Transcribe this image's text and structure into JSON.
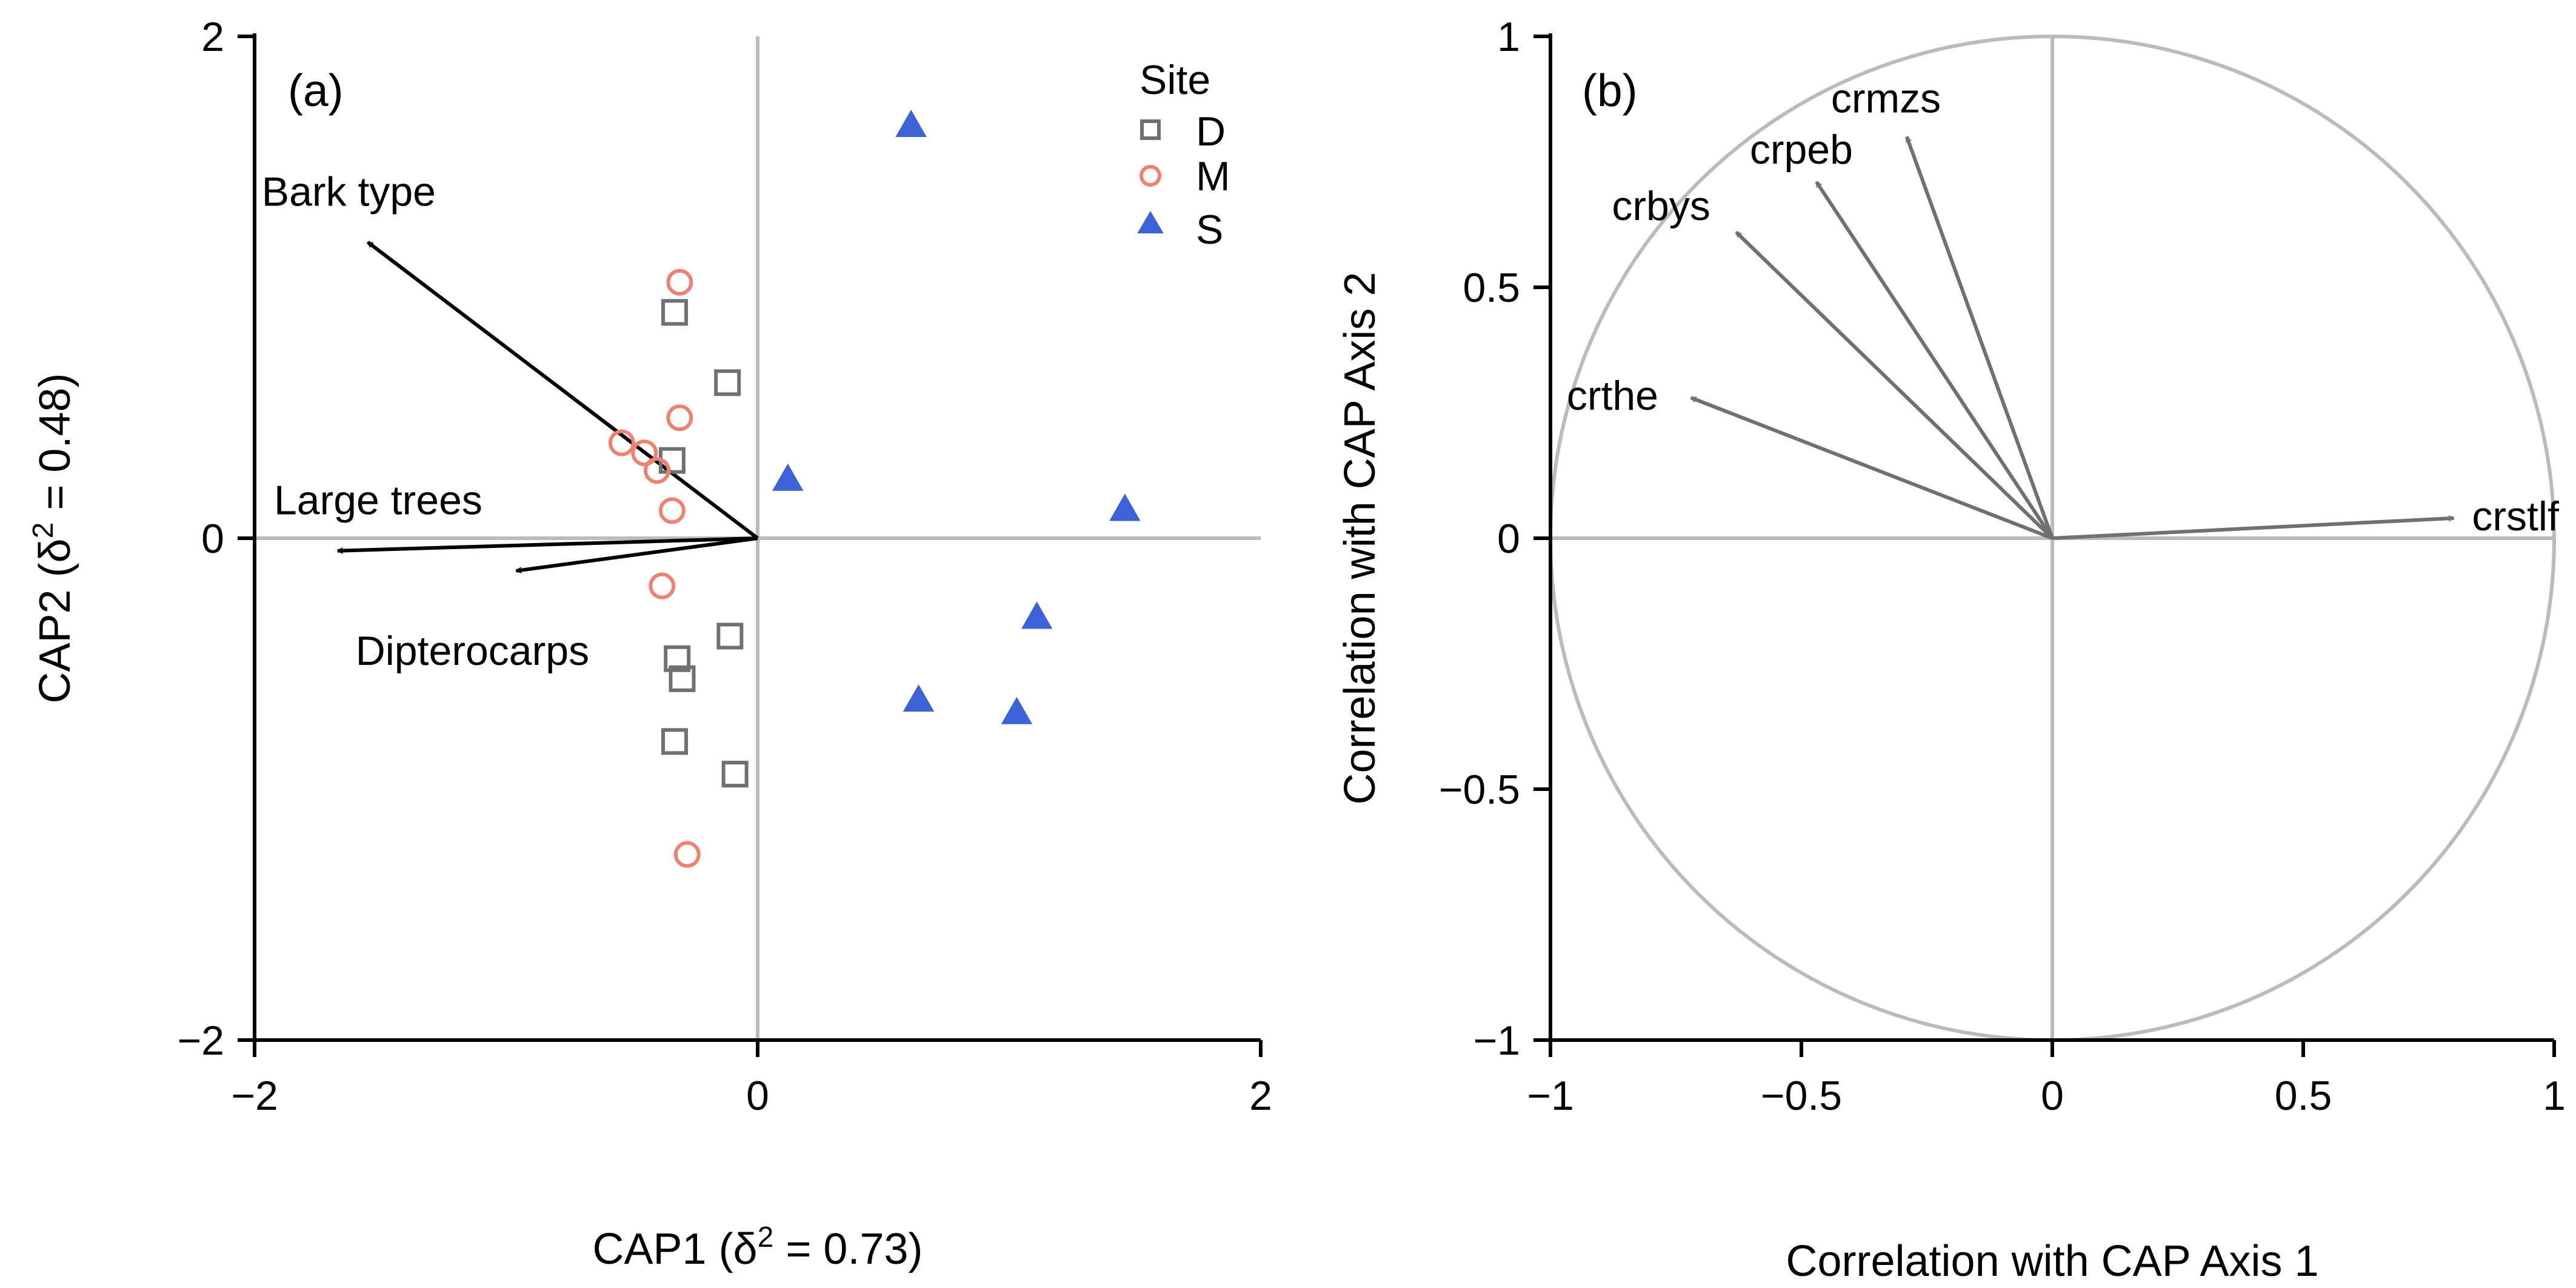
{
  "chart_data": [
    {
      "type": "scatter",
      "panel_label": "(a)",
      "xlabel": "CAP1 (δ² = 0.73)",
      "xlabel_parts": {
        "prefix": "CAP1 (δ",
        "sup": "2",
        "suffix": " = 0.73)"
      },
      "ylabel": "CAP2 (δ² = 0.48)",
      "ylabel_parts": {
        "prefix": "CAP2 (δ",
        "sup": "2",
        "suffix": " = 0.48)"
      },
      "xlim": [
        -2,
        2
      ],
      "ylim": [
        -2,
        2
      ],
      "xticks": [
        -2,
        0,
        2
      ],
      "xtick_labels": [
        "−2",
        "0",
        "2"
      ],
      "yticks": [
        -2,
        0,
        2
      ],
      "ytick_labels": [
        "−2",
        "0",
        "2"
      ],
      "legend": {
        "title": "Site",
        "position": "top-right",
        "entries": [
          {
            "label": "D",
            "marker": "square-open",
            "color": "#707070"
          },
          {
            "label": "M",
            "marker": "circle-open",
            "color": "#f08070"
          },
          {
            "label": "S",
            "marker": "triangle-filled",
            "color": "#3d62d8"
          }
        ]
      },
      "series": [
        {
          "name": "D",
          "marker": "square-open",
          "color": "#707070",
          "points": [
            [
              -0.33,
              0.9
            ],
            [
              -0.12,
              0.62
            ],
            [
              -0.34,
              0.31
            ],
            [
              -0.11,
              -0.39
            ],
            [
              -0.32,
              -0.48
            ],
            [
              -0.3,
              -0.56
            ],
            [
              -0.33,
              -0.81
            ],
            [
              -0.09,
              -0.94
            ]
          ]
        },
        {
          "name": "M",
          "marker": "circle-open",
          "color": "#f08070",
          "points": [
            [
              -0.31,
              1.02
            ],
            [
              -0.31,
              0.48
            ],
            [
              -0.54,
              0.38
            ],
            [
              -0.45,
              0.34
            ],
            [
              -0.4,
              0.27
            ],
            [
              -0.34,
              0.11
            ],
            [
              -0.38,
              -0.19
            ],
            [
              -0.28,
              -1.26
            ]
          ]
        },
        {
          "name": "S",
          "marker": "triangle-filled",
          "color": "#3d62d8",
          "points": [
            [
              0.61,
              1.64
            ],
            [
              0.12,
              0.23
            ],
            [
              1.46,
              0.11
            ],
            [
              1.11,
              -0.32
            ],
            [
              0.64,
              -0.65
            ],
            [
              1.03,
              -0.7
            ]
          ]
        }
      ],
      "vectors": [
        {
          "label": "Bark type",
          "x": -1.55,
          "y": 1.18,
          "color": "#000000"
        },
        {
          "label": "Large trees",
          "x": -1.67,
          "y": -0.05,
          "color": "#000000"
        },
        {
          "label": "Dipterocarps",
          "x": -0.96,
          "y": -0.13,
          "color": "#000000"
        }
      ]
    },
    {
      "type": "vector",
      "panel_label": "(b)",
      "xlabel": "Correlation with CAP Axis 1",
      "ylabel": "Correlation with CAP Axis 2",
      "xlim": [
        -1,
        1
      ],
      "ylim": [
        -1,
        1
      ],
      "xticks": [
        -1,
        -0.5,
        0,
        0.5,
        1
      ],
      "xtick_labels": [
        "−1",
        "−0.5",
        "0",
        "0.5",
        "1"
      ],
      "yticks": [
        -1,
        -0.5,
        0,
        0.5,
        1
      ],
      "ytick_labels": [
        "−1",
        "−0.5",
        "0",
        "0.5",
        "1"
      ],
      "unit_circle": true,
      "vectors": [
        {
          "label": "crmzs",
          "x": -0.29,
          "y": 0.8,
          "color": "#707070"
        },
        {
          "label": "crpeb",
          "x": -0.47,
          "y": 0.71,
          "color": "#707070"
        },
        {
          "label": "crbys",
          "x": -0.63,
          "y": 0.61,
          "color": "#707070"
        },
        {
          "label": "crthe",
          "x": -0.72,
          "y": 0.28,
          "color": "#707070"
        },
        {
          "label": "crstlf",
          "x": 0.8,
          "y": 0.04,
          "color": "#707070"
        }
      ]
    }
  ]
}
